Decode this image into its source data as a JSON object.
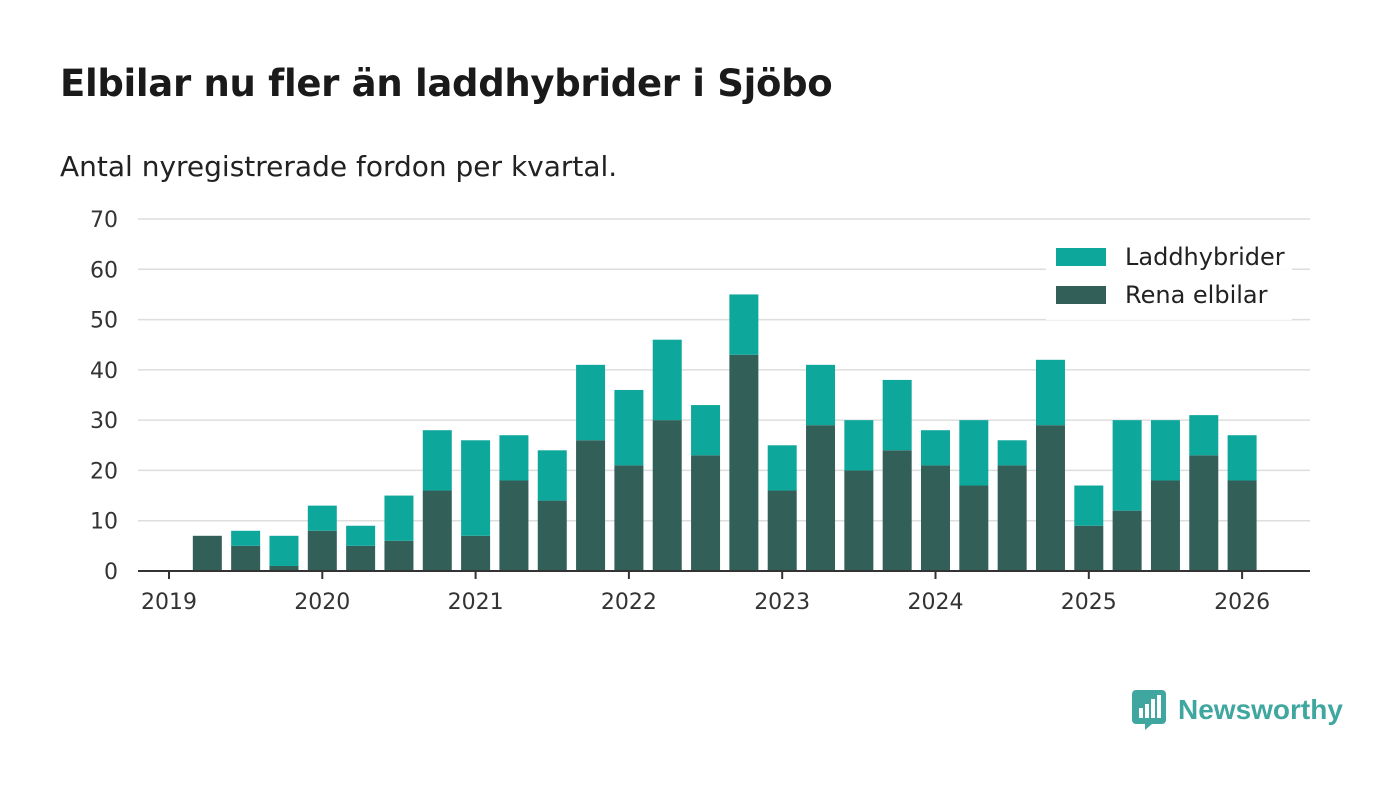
{
  "title": "Elbilar nu fler än laddhybrider i Sjöbo",
  "subtitle": "Antal nyregistrerade fordon per kvartal.",
  "brand": "Newsworthy",
  "colors": {
    "phev": "#0ea79c",
    "ev": "#325f58",
    "grid": "#dddddd",
    "axis": "#333333"
  },
  "chart_data": {
    "type": "bar",
    "stacked": true,
    "ylim": [
      0,
      70
    ],
    "yticks": [
      0,
      10,
      20,
      30,
      40,
      50,
      60,
      70
    ],
    "xticks": [
      "2019",
      "2020",
      "2021",
      "2022",
      "2023",
      "2024",
      "2025",
      "2026"
    ],
    "legend_position": "top-right",
    "categories": [
      "2019 Q2",
      "2019 Q3",
      "2019 Q4",
      "2020 Q1",
      "2020 Q2",
      "2020 Q3",
      "2020 Q4",
      "2021 Q1",
      "2021 Q2",
      "2021 Q3",
      "2021 Q4",
      "2022 Q1",
      "2022 Q2",
      "2022 Q3",
      "2022 Q4",
      "2023 Q1",
      "2023 Q2",
      "2023 Q3",
      "2023 Q4",
      "2024 Q1",
      "2024 Q2",
      "2024 Q3",
      "2024 Q4",
      "2025 Q1",
      "2025 Q2",
      "2025 Q3",
      "2025 Q4",
      "2026 Q1"
    ],
    "series": [
      {
        "name": "Rena elbilar",
        "values": [
          7,
          5,
          1,
          8,
          5,
          6,
          16,
          7,
          18,
          14,
          26,
          21,
          30,
          23,
          43,
          16,
          29,
          20,
          24,
          21,
          17,
          21,
          29,
          9,
          12,
          18,
          23,
          18
        ]
      },
      {
        "name": "Laddhybrider",
        "values": [
          0,
          3,
          6,
          5,
          4,
          9,
          12,
          19,
          9,
          10,
          15,
          15,
          16,
          10,
          12,
          9,
          12,
          10,
          14,
          7,
          13,
          5,
          13,
          8,
          18,
          12,
          8,
          9
        ]
      }
    ],
    "legend": [
      "Laddhybrider",
      "Rena elbilar"
    ]
  }
}
